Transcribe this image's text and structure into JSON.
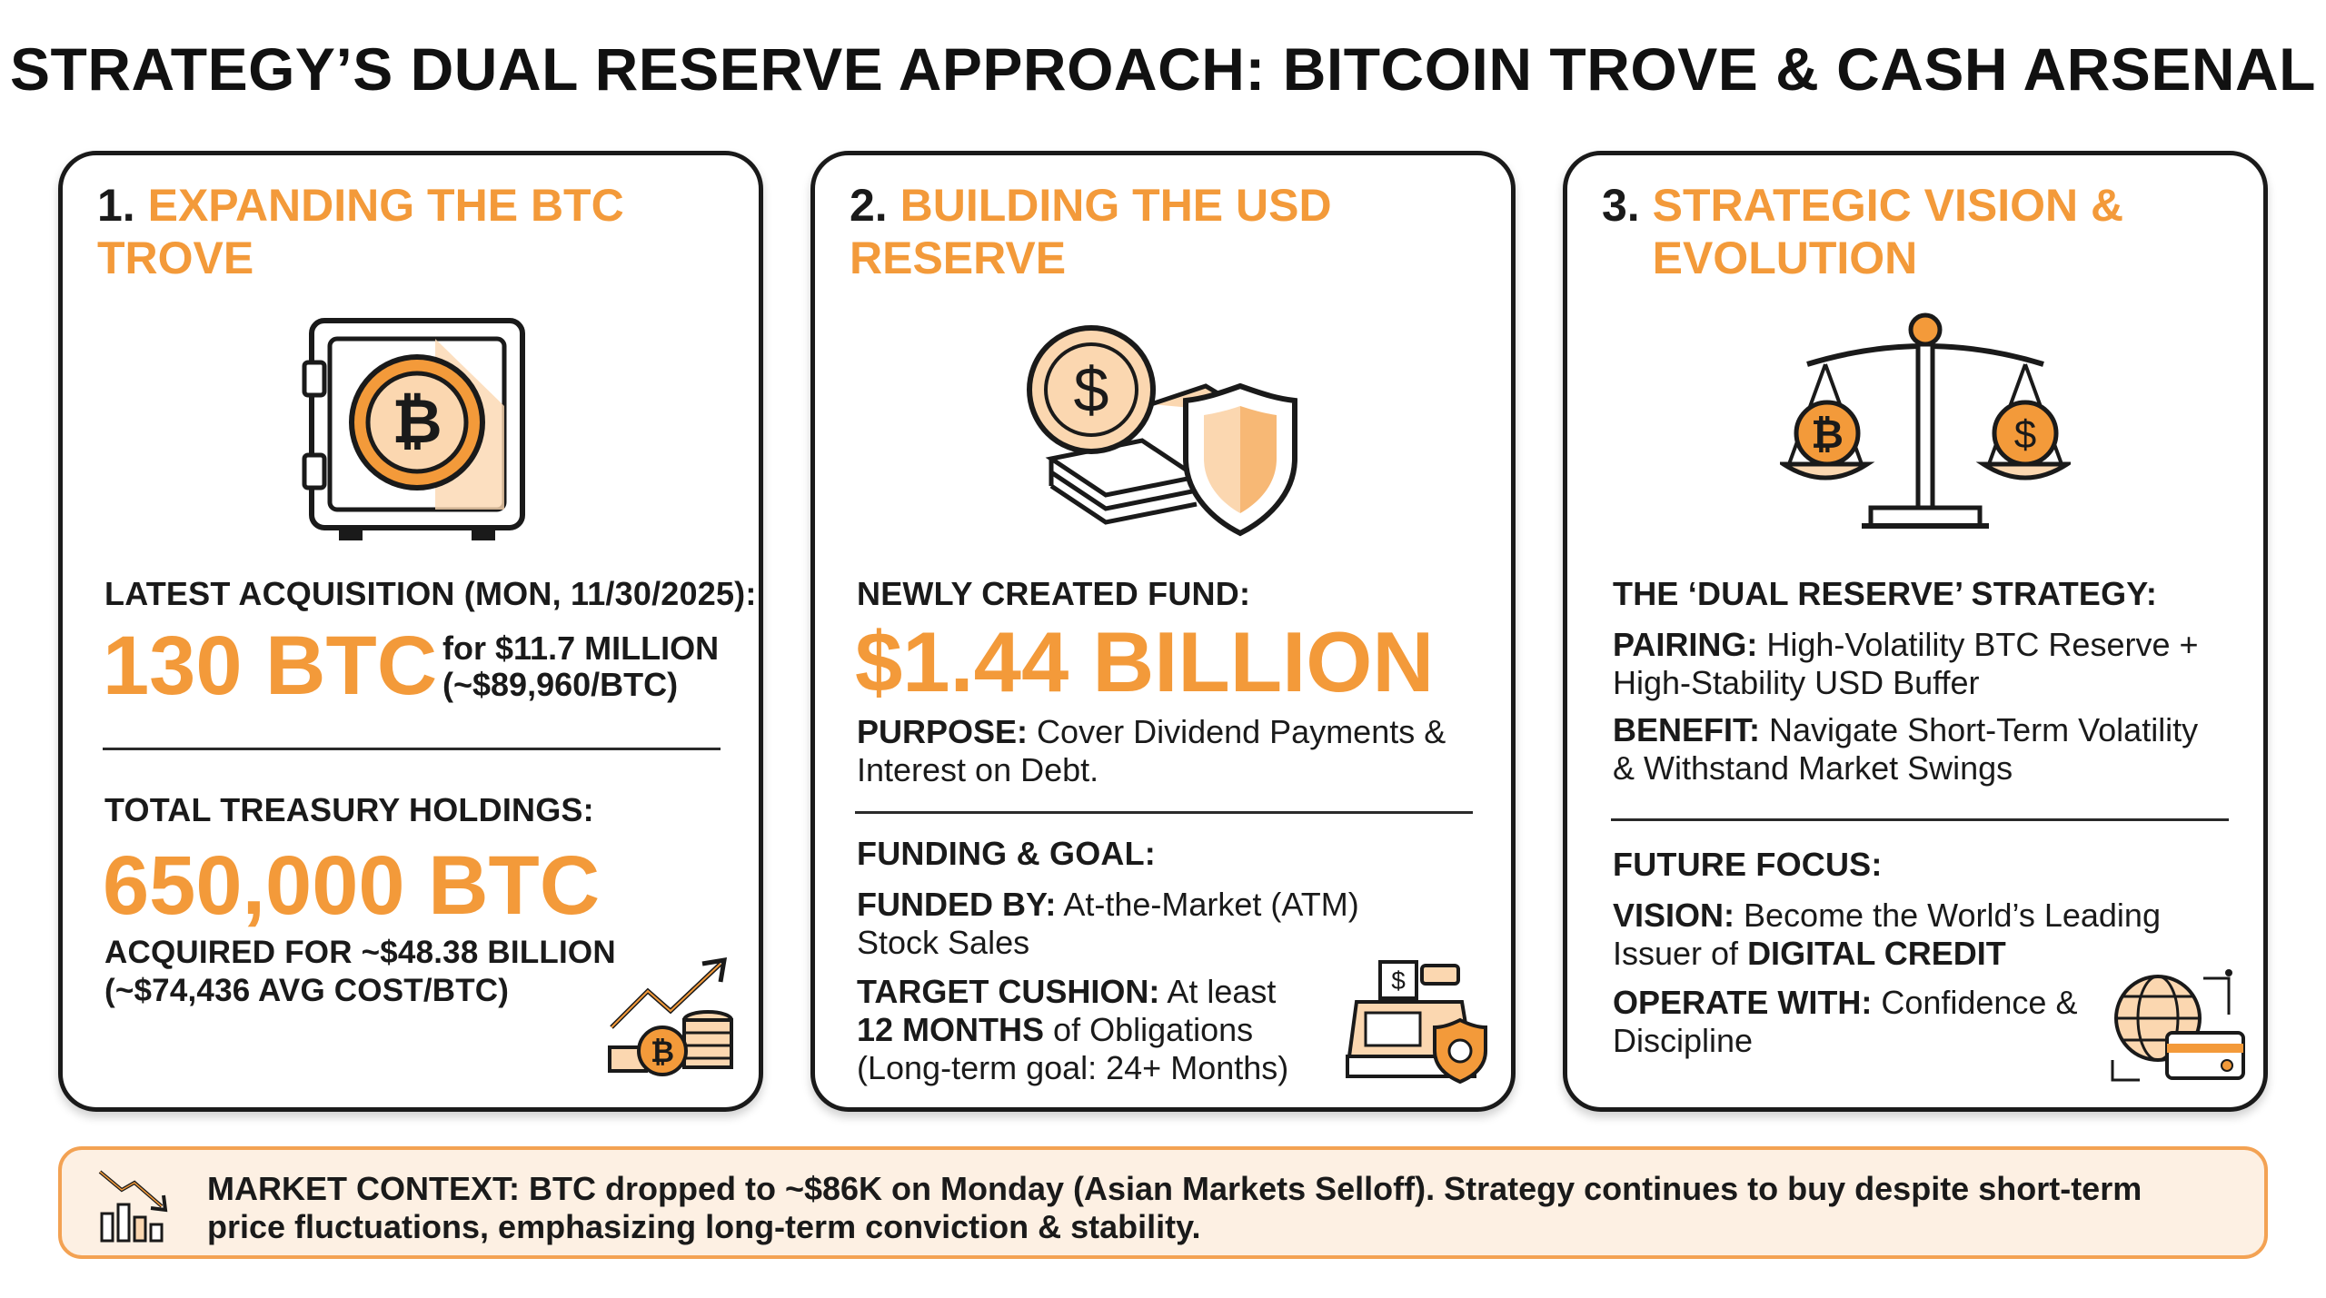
{
  "title": "STRATEGY’S DUAL RESERVE APPROACH: BITCOIN TROVE & CASH ARSENAL",
  "colors": {
    "accent": "#f39a3a",
    "accent_light": "#fbd7b0",
    "ink": "#1a1a1a",
    "footer_bg": "#fdf0e3"
  },
  "cards": [
    {
      "number": "1.",
      "heading": "EXPANDING THE BTC TROVE",
      "icon": "bitcoin-safe-icon",
      "acq_label": "LATEST ACQUISITION (MON, 11/30/2025):",
      "acq_value": "130 BTC",
      "acq_detail_1": "for $11.7 MILLION",
      "acq_detail_2": "(~$89,960/BTC)",
      "total_label": "TOTAL TREASURY HOLDINGS:",
      "total_value": "650,000 BTC",
      "total_detail_1": "ACQUIRED FOR ~$48.38 BILLION",
      "total_detail_2": "(~$74,436 AVG COST/BTC)",
      "corner_icon": "growth-coins-icon"
    },
    {
      "number": "2.",
      "heading": "BUILDING THE USD RESERVE",
      "icon": "dollar-cash-shield-icon",
      "fund_label": "NEWLY CREATED FUND:",
      "fund_value": "$1.44 BILLION",
      "purpose_key": "PURPOSE:",
      "purpose_val": " Cover Dividend Payments & Interest on Debt.",
      "goal_label": "FUNDING & GOAL:",
      "funded_key": "FUNDED BY:",
      "funded_val": " At-the-Market (ATM) Stock Sales",
      "target_key": "TARGET CUSHION:",
      "target_val_1": " At least ",
      "target_months": "12 MONTHS",
      "target_val_2": " of Obligations",
      "target_val_3": "(Long-term goal: 24+ Months)",
      "corner_icon": "cash-register-shield-icon"
    },
    {
      "number": "3.",
      "heading_1": "STRATEGIC VISION &",
      "heading_2": "EVOLUTION",
      "icon": "balance-scale-icon",
      "strategy_label": "THE ‘DUAL RESERVE’ STRATEGY:",
      "pairing_key": "PAIRING:",
      "pairing_val": " High-Volatility BTC Reserve + High-Stability USD Buffer",
      "benefit_key": "BENEFIT:",
      "benefit_val": " Navigate Short-Term Volatility & Withstand Market Swings",
      "future_label": "FUTURE FOCUS:",
      "vision_key": "VISION:",
      "vision_val": " Become the World’s Leading Issuer of ",
      "vision_bold": "DIGITAL CREDIT",
      "operate_key": "OPERATE WITH:",
      "operate_val": " Confidence & Discipline",
      "corner_icon": "globe-credit-card-icon"
    }
  ],
  "footer": {
    "icon": "falling-chart-icon",
    "text": "MARKET CONTEXT: BTC dropped to ~$86K on Monday (Asian Markets Selloff). Strategy continues to buy despite short-term price fluctuations, emphasizing long-term conviction & stability."
  }
}
